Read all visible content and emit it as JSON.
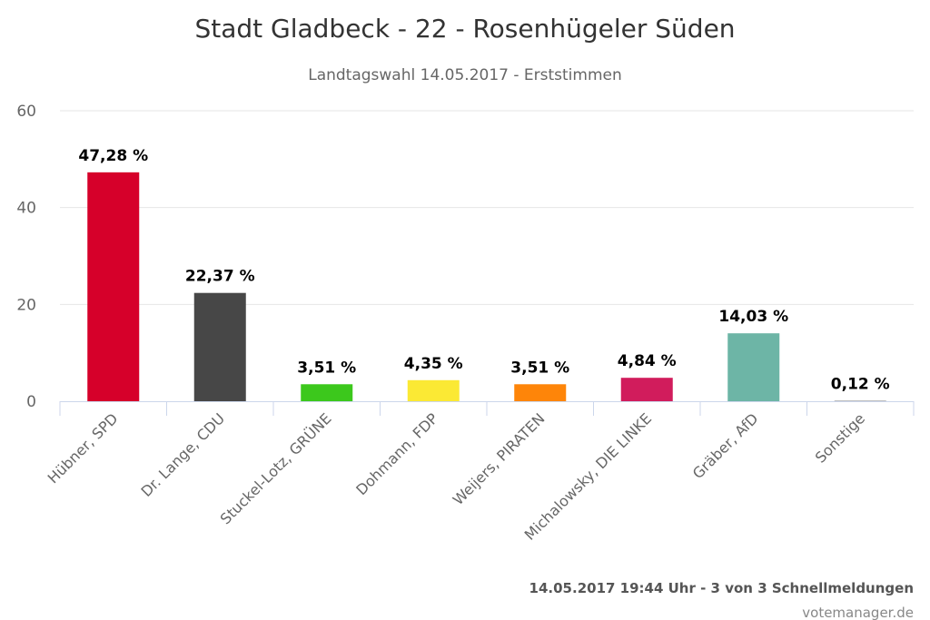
{
  "chart_data": {
    "type": "bar",
    "title": "Stadt Gladbeck - 22 - Rosenhügeler Süden",
    "subtitle": "Landtagswahl 14.05.2017 - Erststimmen",
    "categories": [
      "Hübner, SPD",
      "Dr. Lange, CDU",
      "Stuckel-Lotz, GRÜNE",
      "Dohmann, FDP",
      "Weijers, PIRATEN",
      "Michalowsky, DIE LINKE",
      "Gräber, AfD",
      "Sonstige"
    ],
    "values": [
      47.28,
      22.37,
      3.51,
      4.35,
      3.51,
      4.84,
      14.03,
      0.12
    ],
    "data_labels": [
      "47,28 %",
      "22,37 %",
      "3,51 %",
      "4,35 %",
      "3,51 %",
      "4,84 %",
      "14,03 %",
      "0,12 %"
    ],
    "colors": [
      "#d6002a",
      "#474747",
      "#3cc81c",
      "#fbe934",
      "#fe8509",
      "#d11c5c",
      "#6db5a6",
      "#999999"
    ],
    "ylim": [
      0,
      60
    ],
    "yticks": [
      "0",
      "20",
      "40",
      "60"
    ],
    "ytick_values": [
      0,
      20,
      40,
      60
    ],
    "grid": true,
    "xlabel": "",
    "ylabel": ""
  },
  "credits": {
    "status": "14.05.2017 19:44 Uhr - 3 von 3 Schnellmeldungen",
    "source": "votemanager.de"
  }
}
